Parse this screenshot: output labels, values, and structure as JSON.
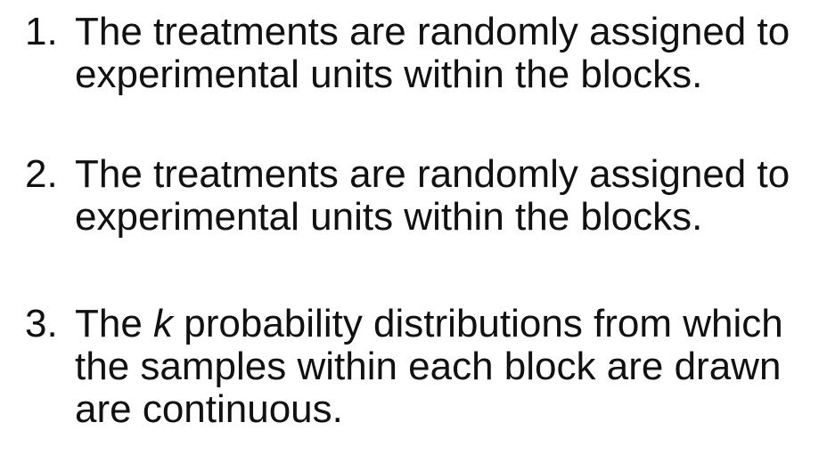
{
  "items": [
    {
      "number": "1.",
      "lines": [
        "The treatments are randomly assigned to",
        "experimental units within the blocks."
      ]
    },
    {
      "number": "2.",
      "lines": [
        "The treatments are randomly assigned to",
        "experimental units within the blocks."
      ]
    },
    {
      "number": "3.",
      "line1_prefix": "The ",
      "line1_italic": "k",
      "line1_suffix": " probability distributions from which",
      "lines": [
        "the samples within each block are drawn",
        "are continuous."
      ]
    }
  ]
}
